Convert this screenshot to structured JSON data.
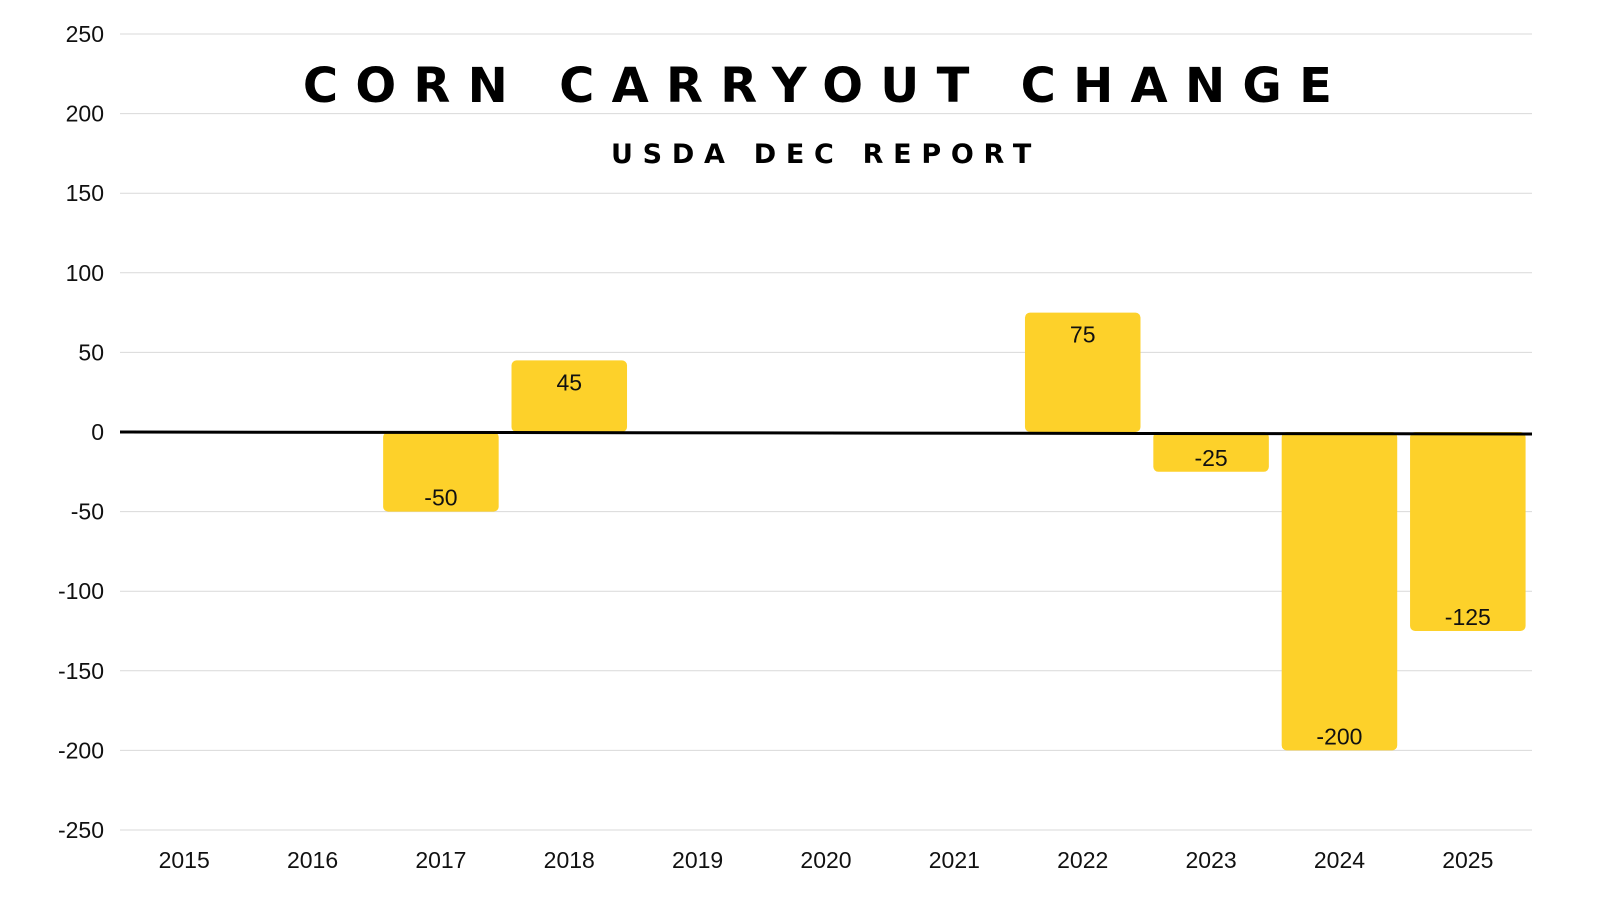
{
  "chart_data": {
    "type": "bar",
    "title": "CORN CARRYOUT CHANGE",
    "subtitle": "USDA DEC REPORT",
    "xlabel": "",
    "ylabel": "",
    "categories": [
      "2015",
      "2016",
      "2017",
      "2018",
      "2019",
      "2020",
      "2021",
      "2022",
      "2023",
      "2024",
      "2025"
    ],
    "values": [
      0,
      0,
      -50,
      45,
      0,
      0,
      0,
      75,
      -25,
      -200,
      -125
    ],
    "data_labels": [
      "",
      "",
      "-50",
      "45",
      "",
      "",
      "",
      "75",
      "-25",
      "-200",
      "-125"
    ],
    "ylim": [
      -250,
      250
    ],
    "yticks": [
      250,
      200,
      150,
      100,
      50,
      0,
      -50,
      -100,
      -150,
      -200,
      -250
    ],
    "ytick_labels": [
      "250",
      "200",
      "150",
      "100",
      "50",
      "0",
      "-50",
      "-100",
      "-150",
      "-200",
      "-250"
    ],
    "grid": true,
    "legend": "none",
    "bar_color": "#FDD12A",
    "zero_line_color": "#000000",
    "grid_color": "#D9D9D9"
  }
}
